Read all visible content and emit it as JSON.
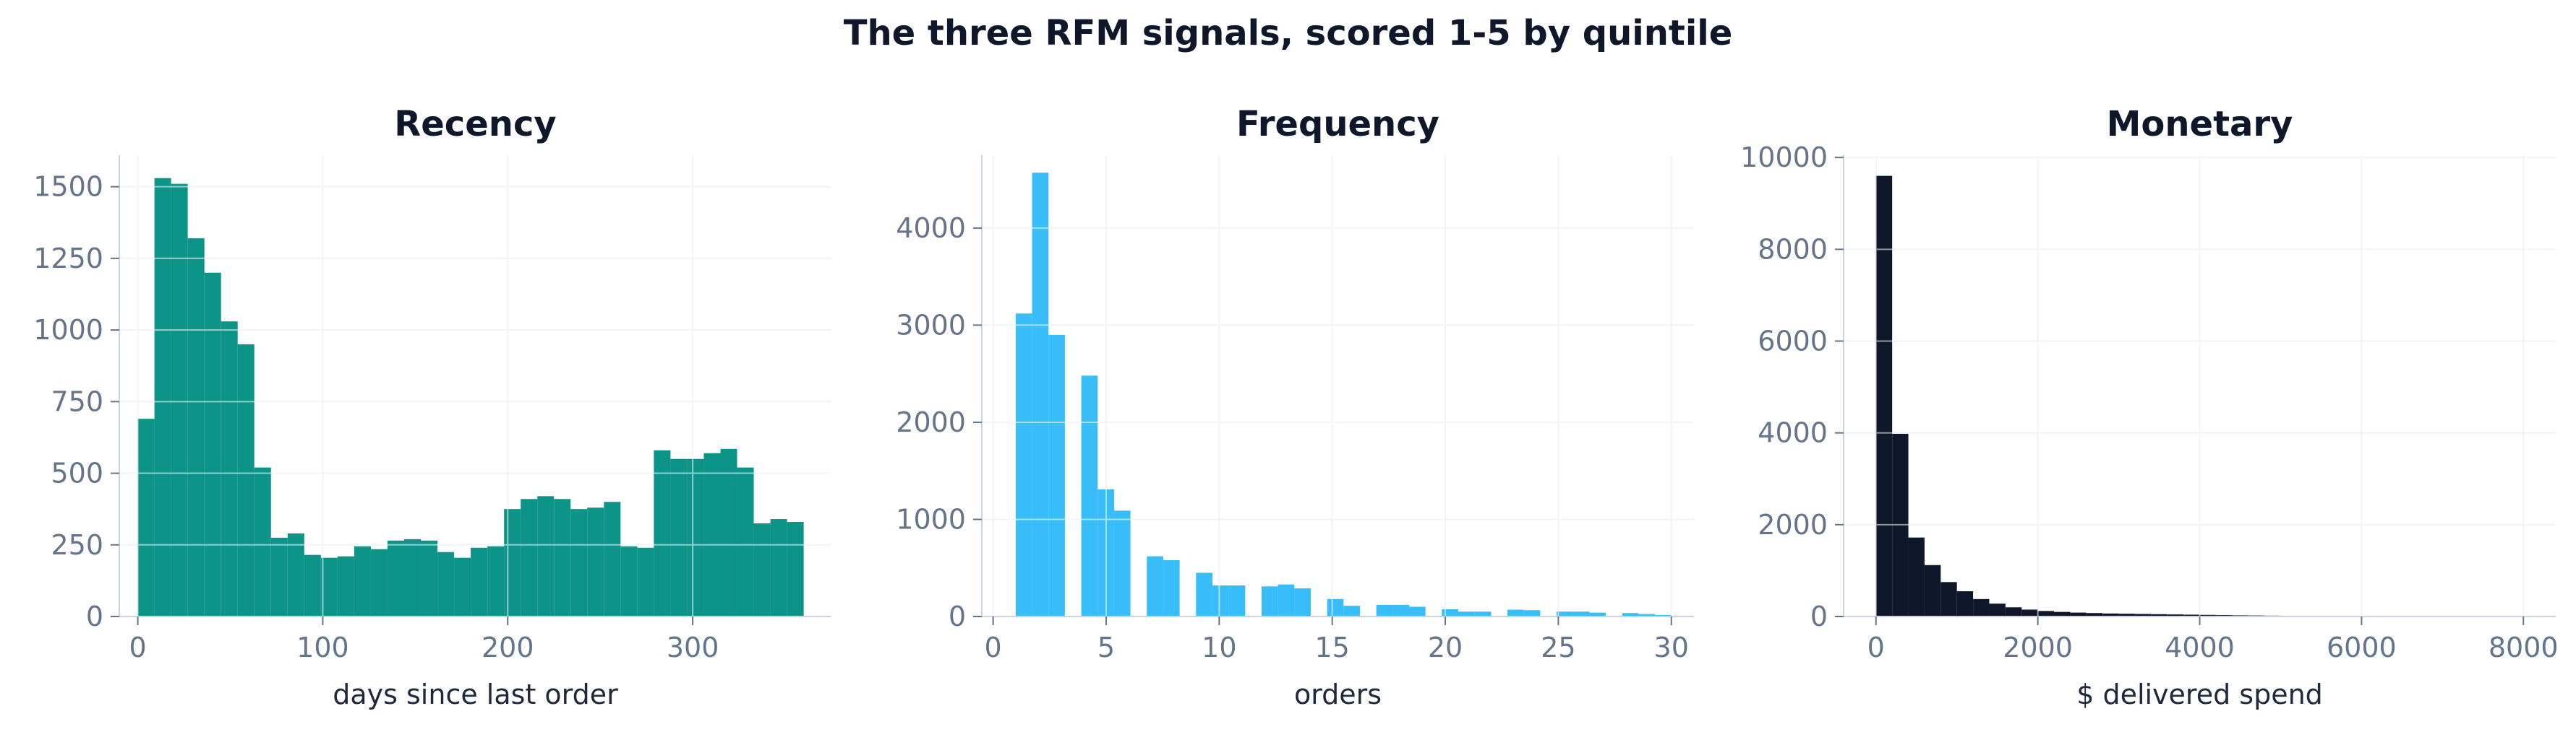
{
  "title": "The three RFM signals, scored 1-5 by quintile",
  "chart_data": [
    {
      "type": "bar",
      "subtype": "histogram",
      "title": "Recency",
      "xlabel": "days since last order",
      "ylabel": "",
      "color": "#0d9488",
      "xlim": [
        -10,
        375
      ],
      "ylim": [
        0,
        1610
      ],
      "xticks": [
        0,
        100,
        200,
        300
      ],
      "yticks": [
        0,
        250,
        500,
        750,
        1000,
        1250,
        1500
      ],
      "bin_edges": [
        0,
        9,
        18,
        27,
        36,
        45,
        54,
        63,
        72,
        81,
        90,
        99,
        108,
        117,
        126,
        135,
        144,
        153,
        162,
        171,
        180,
        189,
        198,
        207,
        216,
        225,
        234,
        243,
        252,
        261,
        270,
        279,
        288,
        297,
        306,
        315,
        324,
        333,
        342,
        351,
        360
      ],
      "values": [
        690,
        1530,
        1510,
        1320,
        1200,
        1030,
        950,
        520,
        275,
        290,
        215,
        205,
        210,
        245,
        235,
        265,
        270,
        265,
        225,
        205,
        240,
        245,
        375,
        410,
        420,
        410,
        375,
        380,
        400,
        245,
        240,
        580,
        550,
        550,
        570,
        585,
        520,
        325,
        340,
        330
      ]
    },
    {
      "type": "bar",
      "subtype": "histogram",
      "title": "Frequency",
      "xlabel": "orders",
      "ylabel": "",
      "color": "#38bdf8",
      "xlim": [
        -0.5,
        31
      ],
      "ylim": [
        0,
        4750
      ],
      "xticks": [
        0,
        5,
        10,
        15,
        20,
        25,
        30
      ],
      "yticks": [
        0,
        1000,
        2000,
        3000,
        4000
      ],
      "bin_edges": [
        1,
        1.725,
        2.45,
        3.175,
        3.9,
        4.625,
        5.35,
        6.075,
        6.8,
        7.525,
        8.25,
        8.975,
        9.7,
        10.425,
        11.15,
        11.875,
        12.6,
        13.325,
        14.05,
        14.775,
        15.5,
        16.225,
        16.95,
        17.675,
        18.4,
        19.125,
        19.85,
        20.575,
        21.3,
        22.025,
        22.75,
        23.475,
        24.2,
        24.925,
        25.65,
        26.375,
        27.1,
        27.825,
        28.55,
        29.275,
        30
      ],
      "values": [
        3120,
        4570,
        2900,
        0,
        2480,
        1310,
        1090,
        0,
        620,
        580,
        0,
        450,
        320,
        320,
        0,
        310,
        330,
        290,
        0,
        180,
        110,
        0,
        120,
        120,
        100,
        0,
        75,
        50,
        50,
        0,
        70,
        65,
        0,
        50,
        50,
        40,
        0,
        35,
        25,
        15
      ]
    },
    {
      "type": "bar",
      "subtype": "histogram",
      "title": "Monetary",
      "xlabel": "$ delivered spend",
      "ylabel": "",
      "color": "#0f172a",
      "xlim": [
        -400,
        8400
      ],
      "ylim": [
        0,
        10050
      ],
      "xticks": [
        0,
        2000,
        4000,
        6000,
        8000
      ],
      "yticks": [
        0,
        2000,
        4000,
        6000,
        8000,
        10000
      ],
      "bin_edges": [
        0,
        200,
        400,
        600,
        800,
        1000,
        1200,
        1400,
        1600,
        1800,
        2000,
        2200,
        2400,
        2600,
        2800,
        3000,
        3200,
        3400,
        3600,
        3800,
        4000,
        4200,
        4400,
        4600,
        4800,
        5000,
        5200,
        5400,
        5600,
        5800,
        6000,
        6200,
        6400,
        6600,
        6800,
        7000,
        7200,
        7400,
        7600,
        7800,
        8000
      ],
      "values": [
        9600,
        3980,
        1720,
        1120,
        750,
        550,
        380,
        280,
        200,
        150,
        120,
        100,
        85,
        75,
        65,
        60,
        55,
        50,
        45,
        40,
        35,
        30,
        25,
        22,
        18,
        15,
        10,
        8,
        6,
        5,
        5,
        4,
        4,
        3,
        3,
        2,
        2,
        2,
        1,
        1
      ]
    }
  ]
}
